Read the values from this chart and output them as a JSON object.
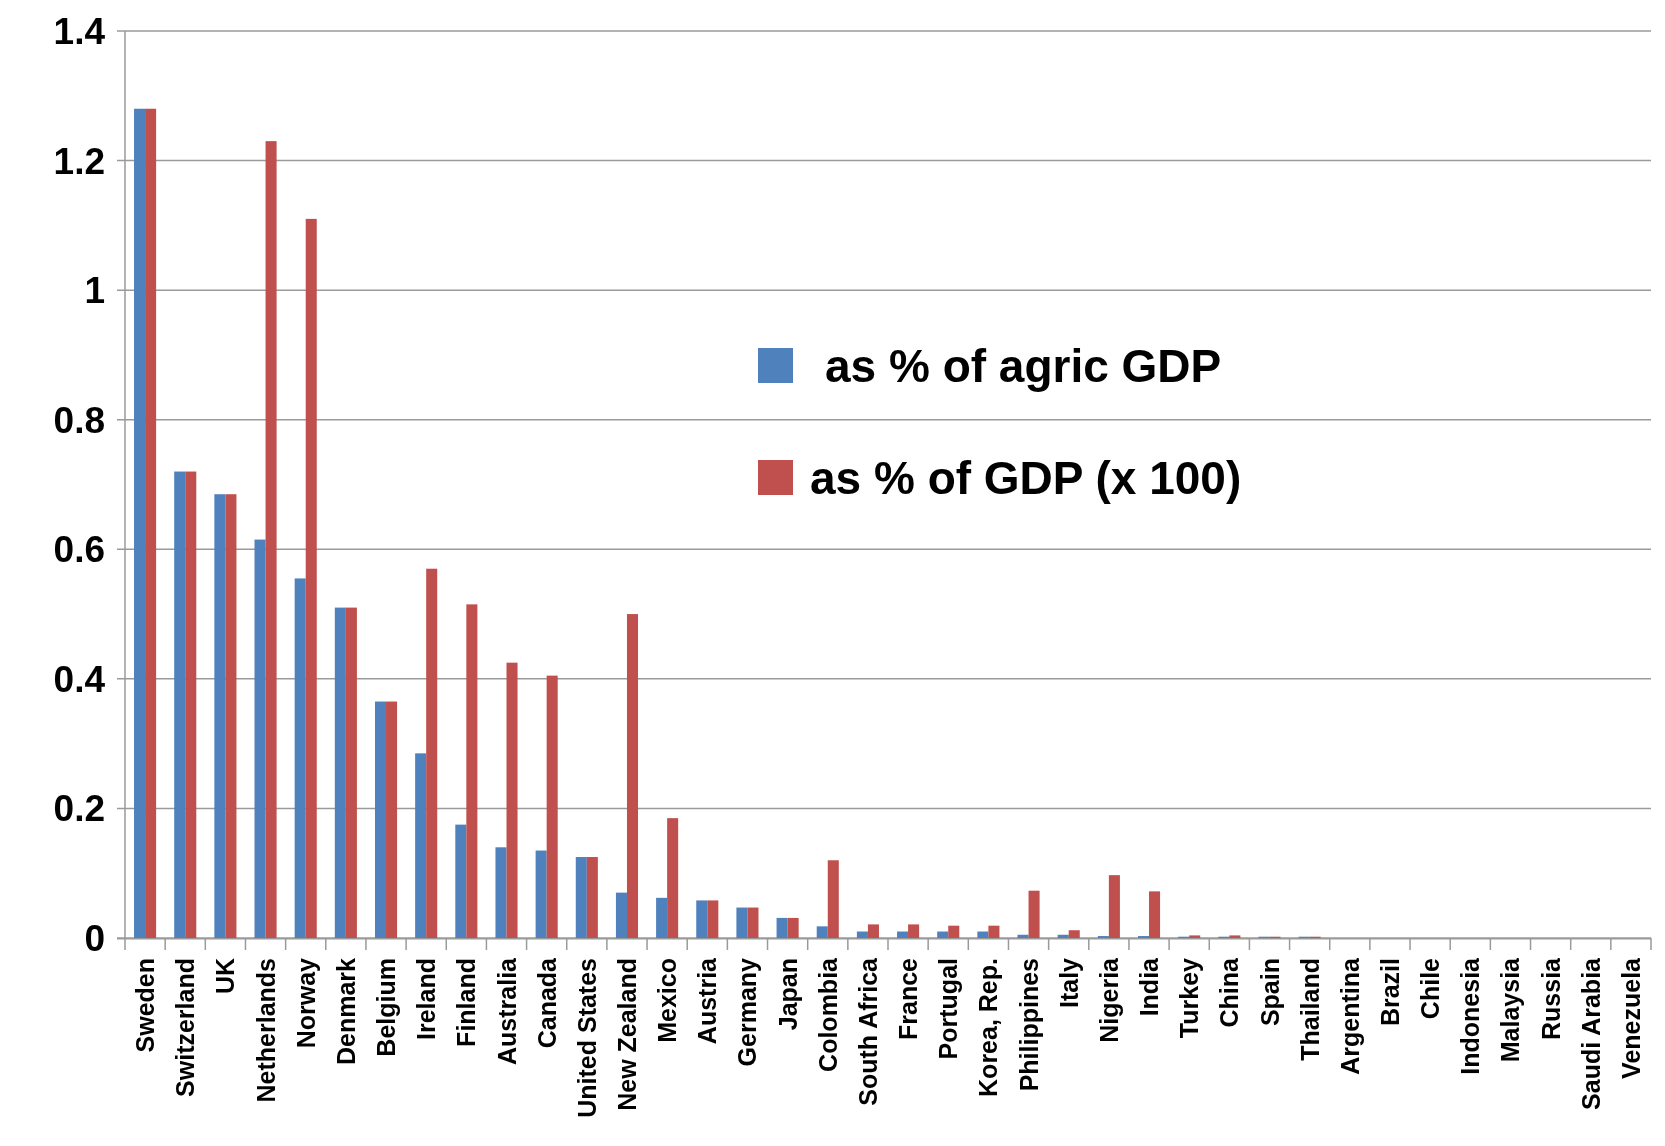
{
  "chart_data": {
    "type": "bar",
    "categories": [
      "Sweden",
      "Switzerland",
      "UK",
      "Netherlands",
      "Norway",
      "Denmark",
      "Belgium",
      "Ireland",
      "Finland",
      "Australia",
      "Canada",
      "United States",
      "New Zealand",
      "Mexico",
      "Austria",
      "Germany",
      "Japan",
      "Colombia",
      "South Africa",
      "France",
      "Portugal",
      "Korea, Rep.",
      "Philippines",
      "Italy",
      "Nigeria",
      "India",
      "Turkey",
      "China",
      "Spain",
      "Thailand",
      "Argentina",
      "Brazil",
      "Chile",
      "Indonesia",
      "Malaysia",
      "Russia",
      "Saudi Arabia",
      "Venezuela"
    ],
    "series": [
      {
        "name": "as % of agric GDP",
        "color": "#4f81bd",
        "values": [
          1.28,
          0.72,
          0.685,
          0.615,
          0.555,
          0.51,
          0.365,
          0.285,
          0.175,
          0.14,
          0.135,
          0.125,
          0.07,
          0.062,
          0.058,
          0.047,
          0.031,
          0.018,
          0.01,
          0.01,
          0.01,
          0.01,
          0.005,
          0.005,
          0.003,
          0.003,
          0.002,
          0.002,
          0.002,
          0.002,
          0,
          0,
          0,
          0,
          0,
          0,
          0,
          0
        ]
      },
      {
        "name": "as % of GDP (x 100)",
        "color": "#c0504d",
        "values": [
          1.28,
          0.72,
          0.685,
          1.23,
          1.11,
          0.51,
          0.365,
          0.57,
          0.515,
          0.425,
          0.405,
          0.125,
          0.5,
          0.185,
          0.058,
          0.047,
          0.031,
          0.12,
          0.021,
          0.021,
          0.019,
          0.019,
          0.073,
          0.012,
          0.097,
          0.072,
          0.004,
          0.004,
          0.002,
          0.002,
          0,
          0,
          0,
          0,
          0,
          0,
          0,
          0
        ]
      }
    ],
    "ylim": [
      0,
      1.4
    ],
    "yticks": [
      0,
      0.2,
      0.4,
      0.6,
      0.8,
      1,
      1.2,
      1.4
    ],
    "grid": "y",
    "legend": "top right"
  }
}
